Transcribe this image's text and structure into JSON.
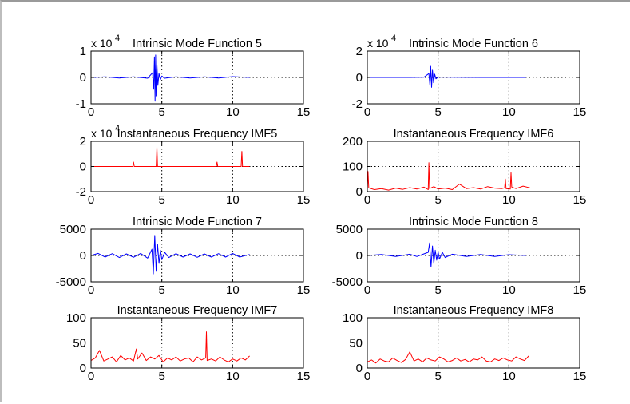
{
  "figure": {
    "colors": {
      "imf": "#0000ff",
      "freq": "#ff0000",
      "axes": "#000000",
      "grid": "#000000",
      "background": "#ffffff"
    }
  },
  "chart_data": [
    {
      "type": "line",
      "title": "Intrinsic Mode Function 5",
      "exponent_label": "x 10",
      "exponent_power": "4",
      "xlim": [
        0,
        15
      ],
      "ylim": [
        -1,
        1
      ],
      "xticks": [
        0,
        5,
        10,
        15
      ],
      "yticks": [
        -1,
        0,
        1
      ],
      "xtick_labels": [
        "0",
        "5",
        "10",
        "15"
      ],
      "ytick_labels": [
        "-1",
        "0",
        "1"
      ],
      "grid": true,
      "color": "#0000ff",
      "series": [
        {
          "x": [
            0,
            1,
            2,
            3,
            4,
            4.35,
            4.42,
            4.48,
            4.52,
            4.56,
            4.6,
            4.65,
            4.72,
            4.8,
            4.9,
            5.0,
            5.2,
            6,
            7,
            8,
            9,
            10,
            11.2
          ],
          "y": [
            0,
            0.02,
            -0.02,
            0.02,
            -0.03,
            0.18,
            -0.45,
            0.78,
            -0.9,
            0.85,
            -0.7,
            0.5,
            -0.3,
            0.15,
            -0.08,
            0.05,
            -0.03,
            0.02,
            -0.02,
            0.02,
            -0.02,
            0.03,
            0
          ]
        }
      ]
    },
    {
      "type": "line",
      "title": "Intrinsic Mode Function 6",
      "exponent_label": "x 10",
      "exponent_power": "4",
      "xlim": [
        0,
        15
      ],
      "ylim": [
        -2,
        2
      ],
      "xticks": [
        0,
        5,
        10,
        15
      ],
      "yticks": [
        -2,
        0,
        2
      ],
      "xtick_labels": [
        "0",
        "5",
        "10",
        "15"
      ],
      "ytick_labels": [
        "-2",
        "0",
        "2"
      ],
      "grid": true,
      "color": "#0000ff",
      "series": [
        {
          "x": [
            0,
            3,
            4,
            4.35,
            4.42,
            4.48,
            4.54,
            4.6,
            4.68,
            4.76,
            4.85,
            5.0,
            6,
            8,
            10,
            11.2
          ],
          "y": [
            0,
            0,
            0.01,
            0.3,
            -0.6,
            0.85,
            -0.75,
            0.55,
            -0.4,
            0.25,
            -0.1,
            0.03,
            0.01,
            0,
            0,
            0
          ]
        }
      ]
    },
    {
      "type": "line",
      "title": "Instantaneous Frequency IMF5",
      "exponent_label": "x 10",
      "exponent_power": "4",
      "xlim": [
        0,
        15
      ],
      "ylim": [
        -2,
        2
      ],
      "xticks": [
        0,
        5,
        10,
        15
      ],
      "yticks": [
        -2,
        0,
        2
      ],
      "xtick_labels": [
        "0",
        "5",
        "10",
        "15"
      ],
      "ytick_labels": [
        "-2",
        "0",
        "2"
      ],
      "grid": true,
      "color": "#ff0000",
      "series": [
        {
          "x": [
            0,
            2.95,
            3.0,
            3.05,
            4.6,
            4.65,
            4.7,
            8.85,
            8.9,
            8.95,
            10.6,
            10.65,
            10.7,
            11.2
          ],
          "y": [
            0,
            0,
            0.35,
            0,
            0,
            1.55,
            0,
            0,
            0.35,
            0,
            0,
            1.2,
            0,
            0
          ]
        }
      ]
    },
    {
      "type": "line",
      "title": "Instantaneous Frequency IMF6",
      "xlim": [
        0,
        15
      ],
      "ylim": [
        0,
        200
      ],
      "xticks": [
        0,
        5,
        10,
        15
      ],
      "yticks": [
        0,
        100,
        200
      ],
      "xtick_labels": [
        "0",
        "5",
        "10",
        "15"
      ],
      "ytick_labels": [
        "0",
        "100",
        "200"
      ],
      "grid": true,
      "color": "#ff0000",
      "series": [
        {
          "x": [
            0,
            0.05,
            0.1,
            0.5,
            1,
            1.5,
            2,
            2.5,
            3,
            3.5,
            4,
            4.3,
            4.35,
            4.4,
            4.7,
            5,
            5.5,
            6,
            6.5,
            7,
            7.5,
            8,
            8.5,
            9,
            9.5,
            9.7,
            9.75,
            9.8,
            10.1,
            10.15,
            10.2,
            10.5,
            11,
            11.5
          ],
          "y": [
            10,
            80,
            15,
            8,
            12,
            6,
            14,
            9,
            16,
            10,
            18,
            8,
            115,
            12,
            20,
            10,
            14,
            8,
            30,
            12,
            16,
            10,
            20,
            14,
            12,
            15,
            50,
            12,
            10,
            75,
            18,
            12,
            22,
            15
          ]
        }
      ]
    },
    {
      "type": "line",
      "title": "Intrinsic Mode Function 7",
      "xlim": [
        0,
        15
      ],
      "ylim": [
        -5000,
        5000
      ],
      "xticks": [
        0,
        5,
        10,
        15
      ],
      "yticks": [
        -5000,
        0,
        5000
      ],
      "xtick_labels": [
        "0",
        "5",
        "10",
        "15"
      ],
      "ytick_labels": [
        "-5000",
        "0",
        "5000"
      ],
      "grid": true,
      "color": "#0000ff",
      "series": [
        {
          "x": [
            0,
            0.5,
            1,
            1.5,
            2,
            2.5,
            3,
            3.5,
            4,
            4.3,
            4.4,
            4.5,
            4.6,
            4.7,
            4.8,
            4.9,
            5.0,
            5.2,
            5.5,
            6,
            6.5,
            7,
            7.5,
            8,
            8.5,
            9,
            9.5,
            10,
            10.5,
            11.2
          ],
          "y": [
            0,
            400,
            -300,
            350,
            -400,
            300,
            -350,
            400,
            -500,
            1200,
            -3500,
            3800,
            -3000,
            2200,
            -1500,
            1000,
            -800,
            600,
            -400,
            350,
            -300,
            300,
            -350,
            300,
            -300,
            350,
            -300,
            400,
            -300,
            200
          ]
        }
      ]
    },
    {
      "type": "line",
      "title": "Intrinsic Mode Function 8",
      "xlim": [
        0,
        15
      ],
      "ylim": [
        -5000,
        5000
      ],
      "xticks": [
        0,
        5,
        10,
        15
      ],
      "yticks": [
        -5000,
        0,
        5000
      ],
      "xtick_labels": [
        "0",
        "5",
        "10",
        "15"
      ],
      "ytick_labels": [
        "-5000",
        "0",
        "5000"
      ],
      "grid": true,
      "color": "#0000ff",
      "series": [
        {
          "x": [
            0,
            1,
            2,
            3,
            3.5,
            4,
            4.3,
            4.4,
            4.5,
            4.6,
            4.7,
            4.8,
            4.9,
            5.0,
            5.1,
            5.3,
            5.5,
            6,
            7,
            8,
            9,
            10,
            11.2
          ],
          "y": [
            0,
            200,
            -200,
            250,
            -200,
            300,
            600,
            2400,
            -2200,
            1800,
            -1500,
            1000,
            -900,
            700,
            -700,
            600,
            -400,
            250,
            -200,
            200,
            -200,
            150,
            0
          ]
        }
      ]
    },
    {
      "type": "line",
      "title": "Instantaneous Frequency IMF7",
      "xlim": [
        0,
        15
      ],
      "ylim": [
        0,
        100
      ],
      "xticks": [
        0,
        5,
        10,
        15
      ],
      "yticks": [
        0,
        50,
        100
      ],
      "xtick_labels": [
        "0",
        "5",
        "10",
        "15"
      ],
      "ytick_labels": [
        "0",
        "50",
        "100"
      ],
      "grid": true,
      "color": "#ff0000",
      "series": [
        {
          "x": [
            0,
            0.3,
            0.6,
            0.9,
            1.2,
            1.5,
            1.8,
            2.1,
            2.4,
            2.7,
            3.0,
            3.2,
            3.3,
            3.6,
            3.9,
            4.2,
            4.5,
            4.8,
            5.1,
            5.4,
            5.7,
            6.0,
            6.3,
            6.6,
            6.9,
            7.2,
            7.5,
            7.8,
            8.1,
            8.15,
            8.2,
            8.5,
            8.8,
            9.1,
            9.4,
            9.7,
            10.0,
            10.3,
            10.6,
            10.9,
            11.2
          ],
          "y": [
            15,
            20,
            35,
            14,
            18,
            22,
            12,
            25,
            16,
            20,
            14,
            38,
            18,
            30,
            15,
            22,
            18,
            25,
            12,
            20,
            16,
            22,
            14,
            18,
            20,
            12,
            22,
            16,
            20,
            72,
            15,
            18,
            14,
            22,
            16,
            12,
            18,
            14,
            20,
            16,
            24
          ]
        }
      ]
    },
    {
      "type": "line",
      "title": "Instantaneous Frequency IMF8",
      "xlim": [
        0,
        15
      ],
      "ylim": [
        0,
        100
      ],
      "xticks": [
        0,
        5,
        10,
        15
      ],
      "yticks": [
        0,
        50,
        100
      ],
      "xtick_labels": [
        "0",
        "5",
        "10",
        "15"
      ],
      "ytick_labels": [
        "0",
        "50",
        "100"
      ],
      "grid": true,
      "color": "#ff0000",
      "series": [
        {
          "x": [
            0,
            0.3,
            0.6,
            0.9,
            1.2,
            1.5,
            1.8,
            2.1,
            2.4,
            2.7,
            3.0,
            3.3,
            3.6,
            3.9,
            4.2,
            4.5,
            4.8,
            5.1,
            5.4,
            5.7,
            6.0,
            6.3,
            6.6,
            6.9,
            7.2,
            7.5,
            7.8,
            8.1,
            8.4,
            8.7,
            9.0,
            9.3,
            9.6,
            9.9,
            10.2,
            10.5,
            10.8,
            11.1,
            11.4
          ],
          "y": [
            12,
            16,
            10,
            18,
            14,
            12,
            20,
            15,
            11,
            17,
            32,
            14,
            18,
            12,
            20,
            16,
            14,
            22,
            18,
            12,
            15,
            20,
            14,
            17,
            12,
            18,
            16,
            22,
            14,
            12,
            18,
            15,
            20,
            16,
            14,
            22,
            18,
            15,
            24
          ]
        }
      ]
    }
  ]
}
